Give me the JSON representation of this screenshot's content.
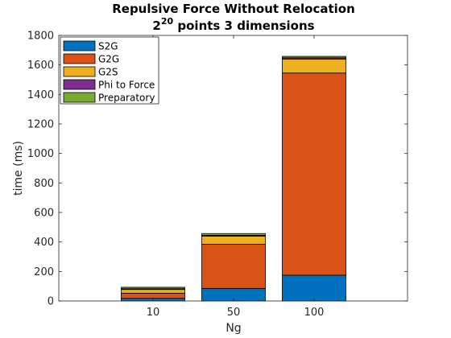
{
  "chart_data": {
    "type": "bar",
    "stacked": true,
    "title_line1": "Repulsive Force Without Relocation",
    "title_line2_base": "2",
    "title_line2_exponent": "20",
    "title_line2_rest": " points 3 dimensions",
    "xlabel": "Ng",
    "ylabel": "time (ms)",
    "categories": [
      "10",
      "50",
      "100"
    ],
    "x": [
      10,
      50,
      100
    ],
    "ylim": [
      0,
      1800
    ],
    "yticks": [
      0,
      200,
      400,
      600,
      800,
      1000,
      1200,
      1400,
      1600,
      1800
    ],
    "legend_location": "top-left",
    "grid": false,
    "series": [
      {
        "name": "S2G",
        "color": "#0072BD",
        "values": [
          18,
          85,
          175
        ]
      },
      {
        "name": "G2G",
        "color": "#D95319",
        "values": [
          35,
          300,
          1370
        ]
      },
      {
        "name": "G2S",
        "color": "#EDB120",
        "values": [
          25,
          55,
          95
        ]
      },
      {
        "name": "Phi to Force",
        "color": "#7E2F8E",
        "values": [
          5,
          5,
          8
        ]
      },
      {
        "name": "Preparatory",
        "color": "#77AC30",
        "values": [
          10,
          12,
          10
        ]
      }
    ]
  }
}
